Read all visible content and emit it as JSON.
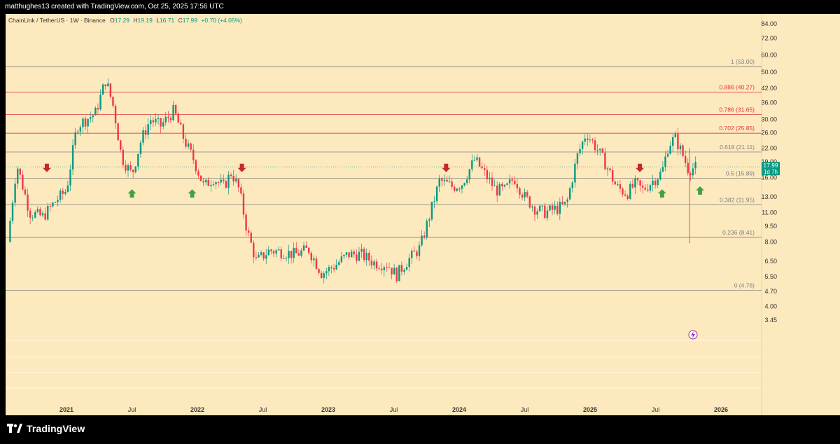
{
  "header": {
    "attribution": "matthughes13 created with TradingView.com, Oct 25, 2025 17:56 UTC"
  },
  "legend": {
    "symbol": "ChainLink / TetherUS · 1W · Binance",
    "open_label": "O",
    "open": "17.29",
    "high_label": "H",
    "high": "19.19",
    "low_label": "L",
    "low": "16.71",
    "close_label": "C",
    "close": "17.99",
    "change": "+0.70 (+4.05%)"
  },
  "price_badge": {
    "price": "17.99",
    "countdown": "1d 7h"
  },
  "branding": {
    "logo_text": "TradingView"
  },
  "colors": {
    "background": "#fde9be",
    "up": "#089981",
    "down": "#f23645",
    "fib_red": "#e0373f",
    "fib_grey": "#808080",
    "arrow_up": "#43a047",
    "arrow_down": "#c62828"
  },
  "chart_data": {
    "type": "candlestick",
    "y_scale": "log",
    "ylim": [
      2.9,
      92
    ],
    "y_ticks": [
      "84.00",
      "72.00",
      "60.00",
      "50.00",
      "42.00",
      "36.00",
      "30.00",
      "26.00",
      "22.00",
      "19.00",
      "16.00",
      "13.00",
      "11.00",
      "9.50",
      "8.00",
      "6.50",
      "5.50",
      "4.70",
      "4.00",
      "3.45"
    ],
    "x_ticks": [
      {
        "label": "2021",
        "year": 2021.0
      },
      {
        "label": "Jul",
        "year": 2021.5
      },
      {
        "label": "2022",
        "year": 2022.0
      },
      {
        "label": "Jul",
        "year": 2022.5
      },
      {
        "label": "2023",
        "year": 2023.0
      },
      {
        "label": "Jul",
        "year": 2023.5
      },
      {
        "label": "2024",
        "year": 2024.0
      },
      {
        "label": "Jul",
        "year": 2024.5
      },
      {
        "label": "2025",
        "year": 2025.0
      },
      {
        "label": "Jul",
        "year": 2025.5
      },
      {
        "label": "2026",
        "year": 2026.0
      }
    ],
    "fib_levels": [
      {
        "label": "1 (53.00)",
        "value": 53.0,
        "color": "grey"
      },
      {
        "label": "0.886 (40.27)",
        "value": 40.27,
        "color": "red"
      },
      {
        "label": "0.786 (31.65)",
        "value": 31.65,
        "color": "red"
      },
      {
        "label": "0.702 (25.85)",
        "value": 25.85,
        "color": "red"
      },
      {
        "label": "0.618 (21.11)",
        "value": 21.11,
        "color": "grey"
      },
      {
        "label": "0.5 (15.89)",
        "value": 15.89,
        "color": "grey"
      },
      {
        "label": "0.382 (11.95)",
        "value": 11.95,
        "color": "grey"
      },
      {
        "label": "0.236 (8.41)",
        "value": 8.41,
        "color": "grey"
      },
      {
        "label": "0 (4.76)",
        "value": 4.76,
        "color": "grey"
      }
    ],
    "current_price": 17.99,
    "price_path": [
      [
        2020.55,
        8.0
      ],
      [
        2020.62,
        18.5
      ],
      [
        2020.72,
        11.0
      ],
      [
        2020.82,
        10.5
      ],
      [
        2020.92,
        12.5
      ],
      [
        2021.0,
        14.0
      ],
      [
        2021.08,
        28.0
      ],
      [
        2021.15,
        30.0
      ],
      [
        2021.22,
        32.0
      ],
      [
        2021.3,
        46.0
      ],
      [
        2021.36,
        34.0
      ],
      [
        2021.42,
        20.0
      ],
      [
        2021.5,
        16.5
      ],
      [
        2021.57,
        24.0
      ],
      [
        2021.64,
        30.0
      ],
      [
        2021.72,
        28.0
      ],
      [
        2021.82,
        33.0
      ],
      [
        2021.9,
        24.0
      ],
      [
        2021.97,
        19.5
      ],
      [
        2022.05,
        14.5
      ],
      [
        2022.12,
        16.0
      ],
      [
        2022.2,
        14.5
      ],
      [
        2022.26,
        17.0
      ],
      [
        2022.32,
        14.0
      ],
      [
        2022.38,
        9.0
      ],
      [
        2022.45,
        6.5
      ],
      [
        2022.55,
        7.3
      ],
      [
        2022.65,
        7.2
      ],
      [
        2022.75,
        7.0
      ],
      [
        2022.85,
        7.4
      ],
      [
        2022.95,
        5.7
      ],
      [
        2023.05,
        6.2
      ],
      [
        2023.15,
        7.0
      ],
      [
        2023.25,
        7.0
      ],
      [
        2023.35,
        6.4
      ],
      [
        2023.45,
        6.3
      ],
      [
        2023.52,
        5.6
      ],
      [
        2023.6,
        6.5
      ],
      [
        2023.7,
        7.5
      ],
      [
        2023.78,
        11.0
      ],
      [
        2023.85,
        15.5
      ],
      [
        2023.95,
        14.5
      ],
      [
        2024.02,
        15.0
      ],
      [
        2024.12,
        19.5
      ],
      [
        2024.2,
        16.5
      ],
      [
        2024.28,
        14.0
      ],
      [
        2024.35,
        14.0
      ],
      [
        2024.42,
        16.0
      ],
      [
        2024.5,
        13.0
      ],
      [
        2024.58,
        11.5
      ],
      [
        2024.65,
        11.0
      ],
      [
        2024.75,
        11.5
      ],
      [
        2024.82,
        12.0
      ],
      [
        2024.9,
        20.0
      ],
      [
        2024.97,
        26.0
      ],
      [
        2025.05,
        22.0
      ],
      [
        2025.12,
        18.5
      ],
      [
        2025.2,
        14.5
      ],
      [
        2025.28,
        13.5
      ],
      [
        2025.35,
        15.0
      ],
      [
        2025.4,
        14.0
      ],
      [
        2025.48,
        15.5
      ],
      [
        2025.55,
        17.0
      ],
      [
        2025.6,
        23.0
      ],
      [
        2025.65,
        24.5
      ],
      [
        2025.7,
        21.0
      ],
      [
        2025.75,
        17.5
      ],
      [
        2025.82,
        17.99
      ]
    ],
    "arrows": [
      {
        "direction": "down",
        "year": 2020.85,
        "price": 16.0
      },
      {
        "direction": "up",
        "year": 2021.5,
        "price": 15.0
      },
      {
        "direction": "up",
        "year": 2021.96,
        "price": 15.0
      },
      {
        "direction": "down",
        "year": 2022.34,
        "price": 16.0
      },
      {
        "direction": "down",
        "year": 2023.9,
        "price": 16.0
      },
      {
        "direction": "down",
        "year": 2025.38,
        "price": 16.0
      },
      {
        "direction": "up",
        "year": 2025.55,
        "price": 15.0
      },
      {
        "direction": "up",
        "year": 2025.84,
        "price": 15.5
      }
    ]
  }
}
